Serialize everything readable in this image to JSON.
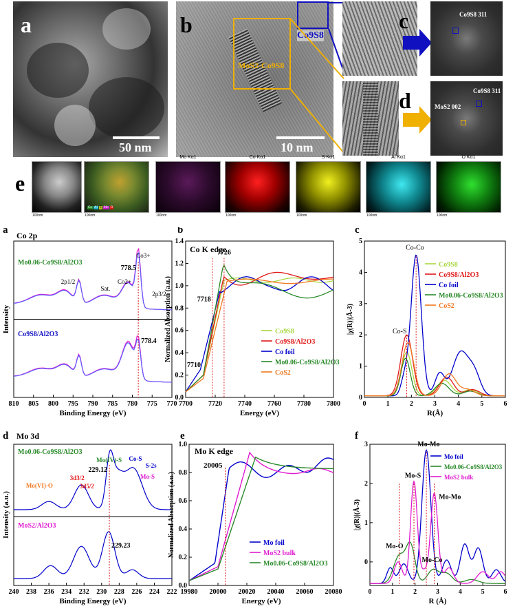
{
  "top": {
    "letters": {
      "a": "a",
      "b": "b",
      "c": "c",
      "d": "d",
      "e": "e"
    },
    "a_scale": "50 nm",
    "b_scale": "10 nm",
    "b_label_co9s8": "Co9S8",
    "b_label_mos2": "MoS2-Co9S8",
    "c_fft_label": "Co9S8 311",
    "d_fft_label_co": "Co9S8 311",
    "d_fft_label_mo": "MoS2 002",
    "map_titles": [
      "Mo Kα1",
      "Co Kα1",
      "S Kα1",
      "Al Kα1",
      "O Kα1"
    ],
    "map_scale": "100nm",
    "overlay_legend": [
      "Co",
      "Al",
      "S",
      "Mo",
      "O"
    ]
  },
  "colors": {
    "gold": "#f0b000",
    "blue": "#1010c0",
    "green": "#2a8a2a",
    "red": "#e01818",
    "magenta": "#e01ad0",
    "orange": "#f07820",
    "lightgreen": "#a8d840",
    "navy": "#0000cc"
  },
  "plots": {
    "a": {
      "letter": "a",
      "title": "Co 2p",
      "xlabel": "Binding Energy (eV)",
      "ylabel": "Intensity",
      "xticks": [
        "810",
        "805",
        "800",
        "795",
        "790",
        "785",
        "780",
        "775",
        "770"
      ],
      "sample_top": "Mo0.06-Co9S8/Al2O3",
      "sample_bottom": "Co9S8/Al2O3",
      "peak_top": "778.5",
      "peak_bottom": "778.4",
      "labels": [
        "2p1/2",
        "Sat.",
        "Co2+",
        "Co3+",
        "2p3/2"
      ]
    },
    "b": {
      "letter": "b",
      "title": "Co K edge",
      "xlabel": "Energy (eV)",
      "ylabel": "Normalized Absorption (a.u.)",
      "xticks": [
        "7700",
        "7720",
        "7740",
        "7760",
        "7780",
        "7800"
      ],
      "yticks": [
        "0.0",
        "0.2",
        "0.4",
        "0.6",
        "0.8",
        "1.0",
        "1.2",
        "1.4"
      ],
      "annotations": [
        "7726",
        "7718",
        "7710"
      ],
      "legend": [
        "Co9S8",
        "Co9S8/Al2O3",
        "Co foil",
        "Mo0.06-Co9S8/Al2O3",
        "CoS2"
      ]
    },
    "c": {
      "letter": "c",
      "xlabel": "R(Å)",
      "ylabel": "|χ(R)|(Å-3)",
      "xticks": [
        "0",
        "1",
        "2",
        "3",
        "4",
        "5",
        "6"
      ],
      "yticks": [
        "0",
        "1",
        "2",
        "3",
        "4",
        "5"
      ],
      "annotations": [
        "Co-Co",
        "Co-S"
      ],
      "legend": [
        "Co9S8",
        "Co9S8/Al2O3",
        "Co foil",
        "Mo0.06-Co9S8/Al2O3",
        "CoS2"
      ]
    },
    "d": {
      "letter": "d",
      "title": "Mo 3d",
      "xlabel": "Binding Energy (eV)",
      "ylabel": "Intensity (a.u.)",
      "xticks": [
        "240",
        "238",
        "236",
        "234",
        "232",
        "230",
        "228",
        "226",
        "224",
        "222"
      ],
      "sample_top": "Mo0.06-Co9S8/Al2O3",
      "sample_bottom": "MoS2/Al2O3",
      "peak_top": "229.12",
      "peak_bottom": "229.23",
      "labels": [
        "Mo(VI)-O",
        "3d3/2",
        "3d5/2",
        "Mo(IV)-S",
        "Co-S",
        "S-2s",
        "Mo-S"
      ]
    },
    "e": {
      "letter": "e",
      "title": "Mo K edge",
      "xlabel": "Energy (eV)",
      "ylabel": "Normalized Absorption (a.u.)",
      "xticks": [
        "19980",
        "20000",
        "20020",
        "20040",
        "20060",
        "20080"
      ],
      "yticks": [
        "0.0",
        "0.2",
        "0.4",
        "0.6",
        "0.8",
        "1.0"
      ],
      "annotation": "20005",
      "legend": [
        "Mo foil",
        "MoS2 bulk",
        "Mo0.06-Co9S8/Al2O3"
      ]
    },
    "f": {
      "letter": "f",
      "xlabel": "R (Å)",
      "ylabel": "|χ(R)|(Å-3)",
      "xticks": [
        "0",
        "1",
        "2",
        "3",
        "4",
        "5",
        "6"
      ],
      "yticks": [
        "0",
        "1",
        "2",
        "3"
      ],
      "annotations": [
        "Mo-Mo",
        "Mo-S",
        "Mo-Mo",
        "Mo-O",
        "Mo-Co"
      ],
      "legend": [
        "Mo foil",
        "Mo0.06-Co9S8/Al2O3",
        "MoS2 bulk"
      ]
    }
  }
}
